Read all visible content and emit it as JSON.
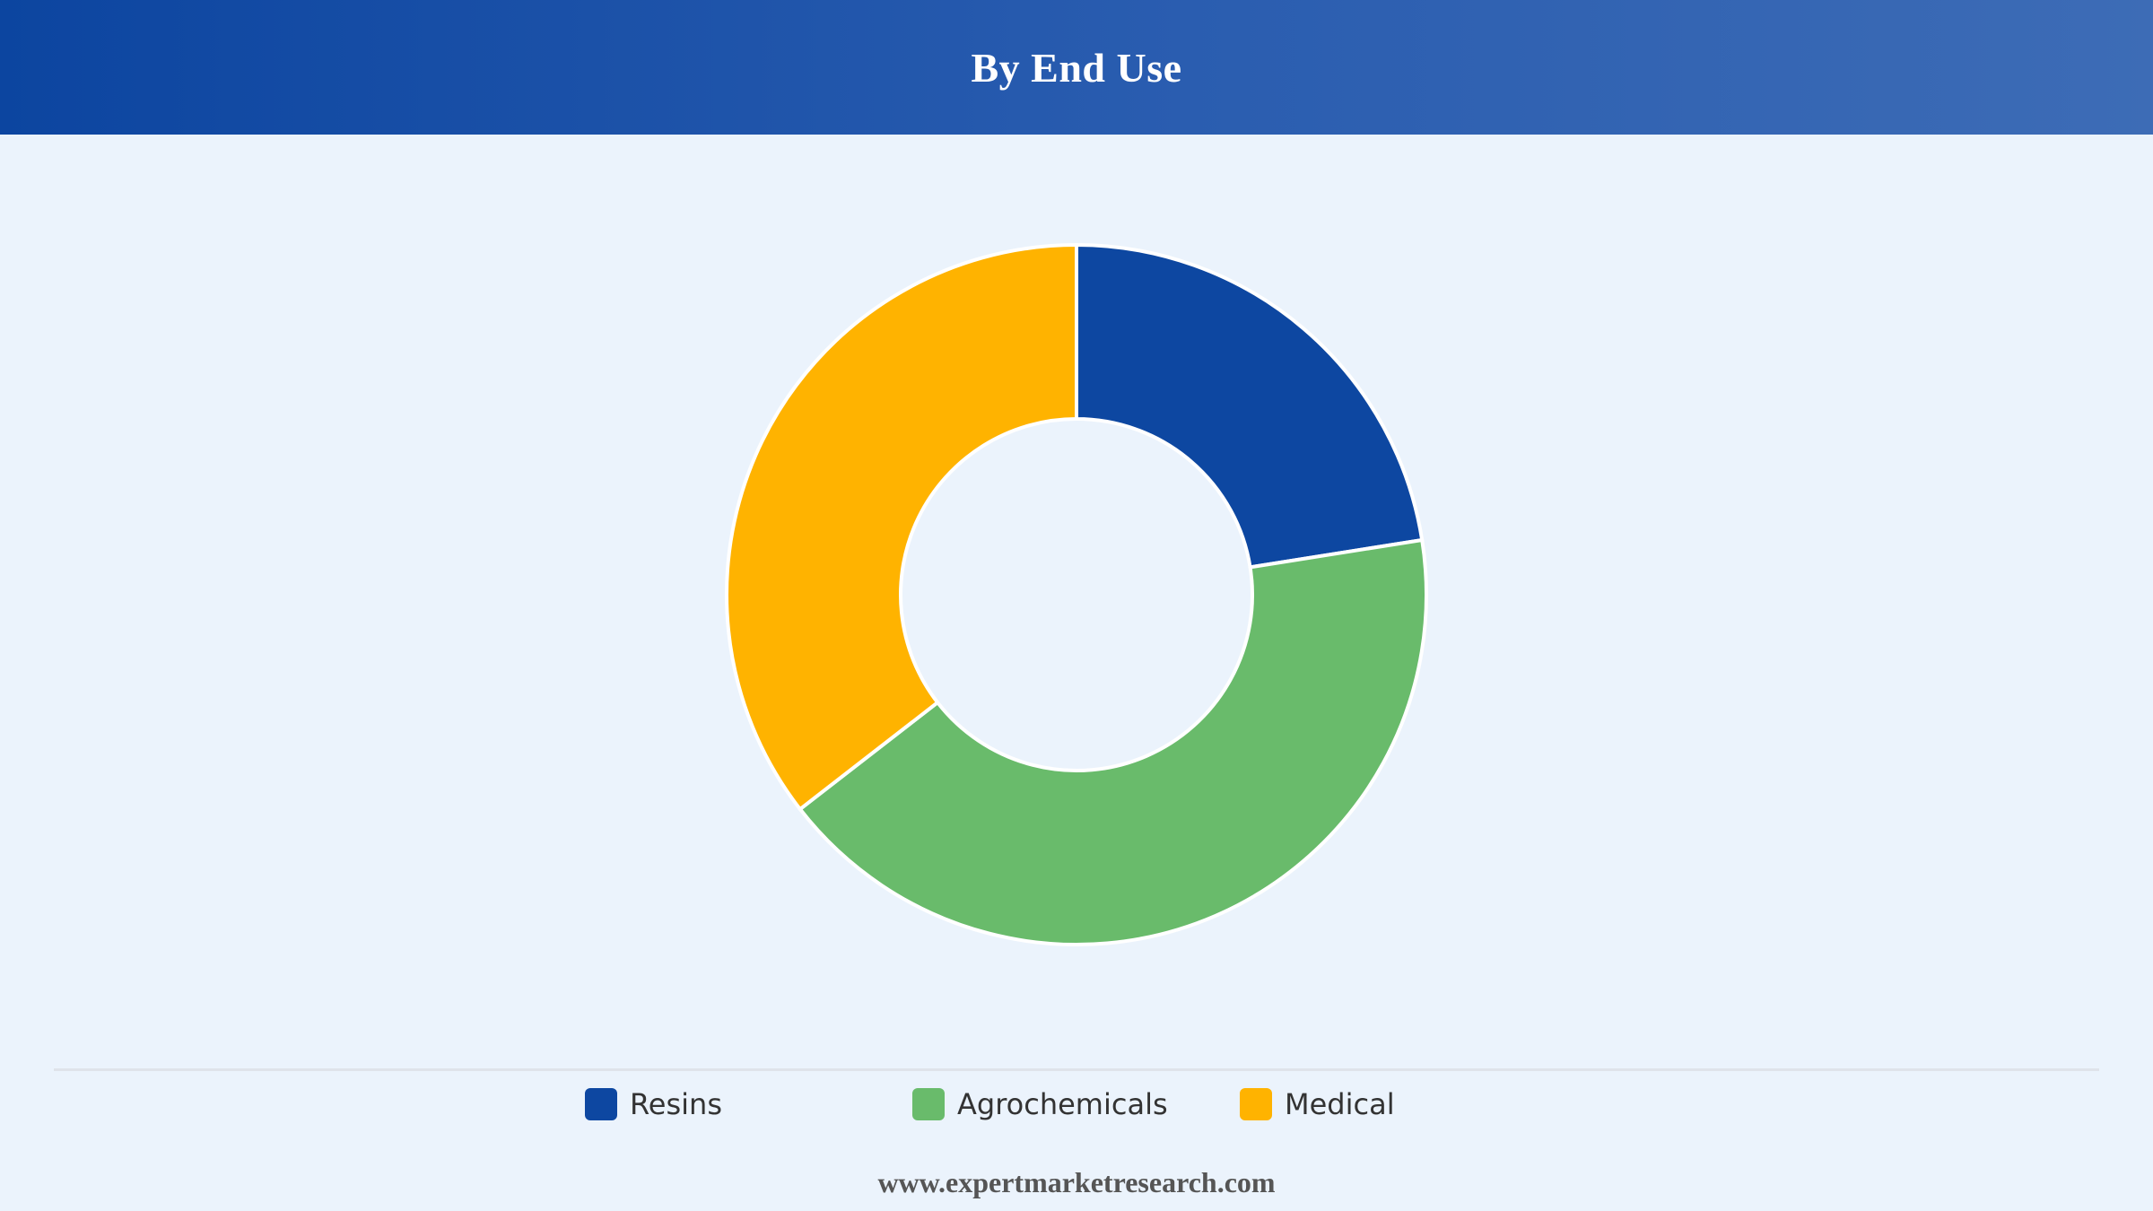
{
  "header": {
    "title": "By End Use"
  },
  "chart_data": {
    "type": "pie",
    "donut": true,
    "title": "By End Use",
    "categories": [
      "Resins",
      "Agrochemicals",
      "Medical"
    ],
    "values": [
      22.5,
      42.0,
      35.5
    ],
    "colors": [
      "#0d47a1",
      "#69bb6b",
      "#ffb300"
    ],
    "legend_position": "bottom",
    "start_angle_deg": 0,
    "direction": "clockwise"
  },
  "footer": {
    "source": "www.expertmarketresearch.com"
  }
}
